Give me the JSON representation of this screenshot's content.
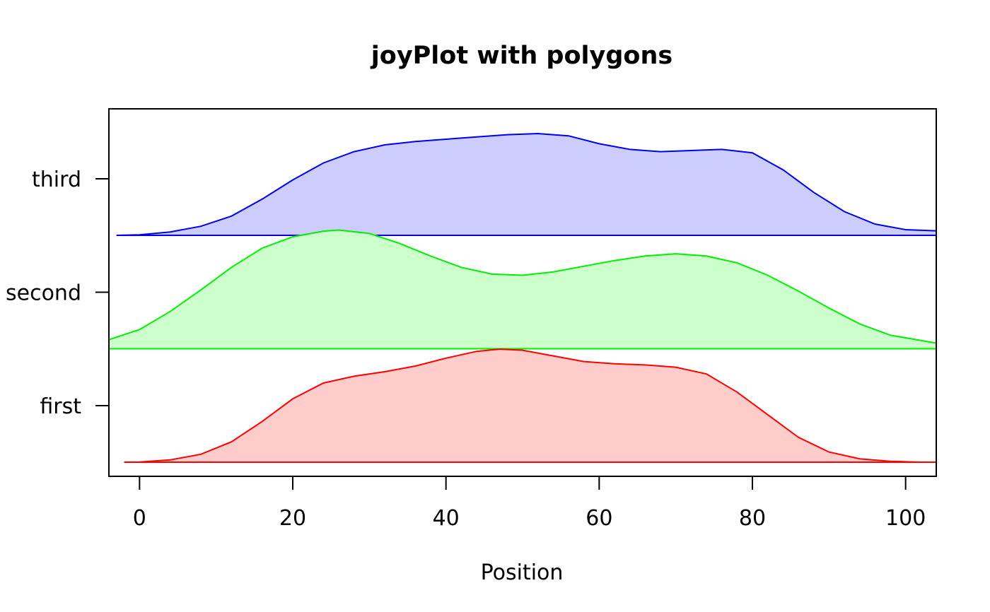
{
  "chart_data": {
    "type": "area",
    "title": "joyPlot with polygons",
    "xlabel": "Position",
    "ylabel": "",
    "xlim": [
      -4,
      104
    ],
    "x_ticks": [
      0,
      20,
      40,
      60,
      80,
      100
    ],
    "y_categories": [
      "first",
      "second",
      "third"
    ],
    "grid": false,
    "legend": "none",
    "series": [
      {
        "name": "first",
        "line_color": "#FF0000",
        "fill_color": "#FFCCCC",
        "x": [
          -2,
          0,
          4,
          8,
          12,
          16,
          20,
          24,
          28,
          32,
          36,
          40,
          44,
          47,
          50,
          54,
          58,
          62,
          66,
          70,
          74,
          78,
          82,
          86,
          90,
          94,
          98,
          102
        ],
        "y": [
          0.0,
          0.002,
          0.02,
          0.07,
          0.18,
          0.36,
          0.56,
          0.7,
          0.76,
          0.8,
          0.85,
          0.92,
          0.98,
          1.0,
          0.99,
          0.94,
          0.89,
          0.87,
          0.86,
          0.84,
          0.78,
          0.62,
          0.42,
          0.22,
          0.09,
          0.03,
          0.008,
          0.0
        ]
      },
      {
        "name": "second",
        "line_color": "#00EE00",
        "fill_color": "#CCFFCC",
        "x": [
          -4,
          0,
          4,
          8,
          12,
          16,
          20,
          24,
          26,
          30,
          34,
          38,
          42,
          46,
          50,
          54,
          58,
          62,
          66,
          70,
          74,
          78,
          82,
          86,
          90,
          94,
          98,
          104
        ],
        "y": [
          0.08,
          0.17,
          0.33,
          0.52,
          0.72,
          0.89,
          0.99,
          1.04,
          1.05,
          1.02,
          0.93,
          0.82,
          0.72,
          0.66,
          0.65,
          0.68,
          0.73,
          0.78,
          0.82,
          0.84,
          0.82,
          0.76,
          0.65,
          0.51,
          0.36,
          0.22,
          0.12,
          0.05
        ]
      },
      {
        "name": "third",
        "line_color": "#0000EE",
        "fill_color": "#CCCCFF",
        "x": [
          -3,
          0,
          4,
          8,
          12,
          16,
          20,
          24,
          28,
          32,
          36,
          40,
          44,
          48,
          52,
          56,
          60,
          64,
          68,
          72,
          76,
          80,
          84,
          88,
          92,
          96,
          100,
          104
        ],
        "y": [
          0.0,
          0.005,
          0.03,
          0.08,
          0.17,
          0.32,
          0.49,
          0.64,
          0.74,
          0.8,
          0.83,
          0.85,
          0.87,
          0.89,
          0.9,
          0.88,
          0.81,
          0.76,
          0.74,
          0.75,
          0.76,
          0.73,
          0.58,
          0.38,
          0.21,
          0.1,
          0.05,
          0.04
        ]
      }
    ]
  }
}
